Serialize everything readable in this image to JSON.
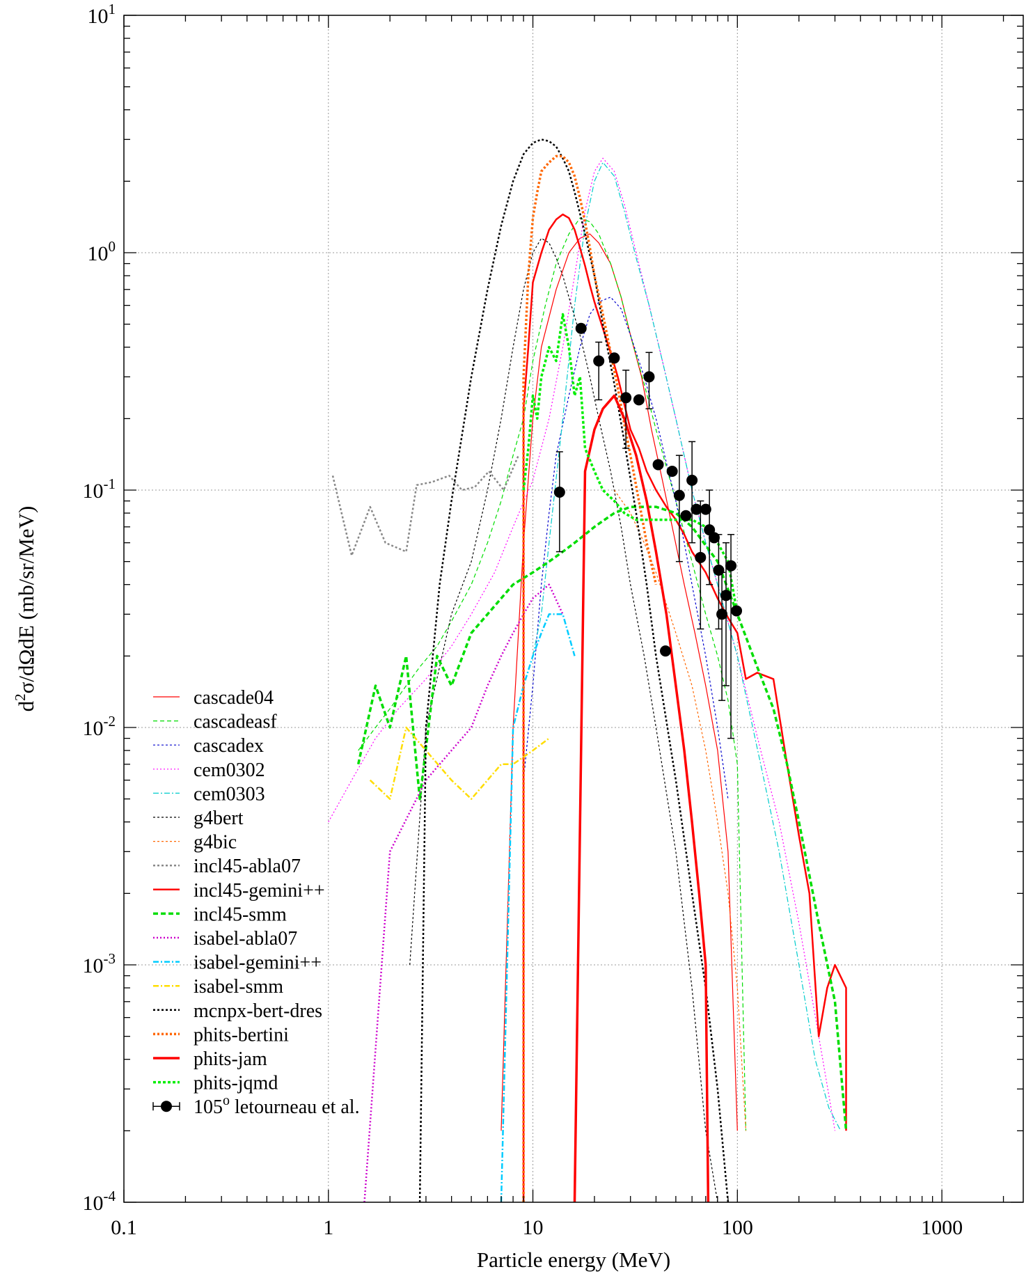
{
  "chart_data": {
    "type": "line",
    "title": "",
    "xlabel": "Particle energy (MeV)",
    "ylabel": {
      "prefix": "d",
      "sup": "2",
      "rest": "σ/dΩdE (mb/sr/MeV)"
    },
    "xscale": "log",
    "yscale": "log",
    "xlim": [
      0.1,
      2500
    ],
    "ylim": [
      0.0001,
      10
    ],
    "grid": true,
    "legend_position": "bottom-left",
    "x_ticks": [
      {
        "value": 0.1,
        "label": "0.1"
      },
      {
        "value": 1,
        "label": "1"
      },
      {
        "value": 10,
        "label": "10"
      },
      {
        "value": 100,
        "label": "100"
      },
      {
        "value": 1000,
        "label": "1000"
      }
    ],
    "y_ticks": [
      {
        "value": 10,
        "base": "10",
        "exp": "1"
      },
      {
        "value": 1,
        "base": "10",
        "exp": "0"
      },
      {
        "value": 0.1,
        "base": "10",
        "exp": "-1"
      },
      {
        "value": 0.01,
        "base": "10",
        "exp": "-2"
      },
      {
        "value": 0.001,
        "base": "10",
        "exp": "-3"
      },
      {
        "value": 0.0001,
        "base": "10",
        "exp": "-4"
      }
    ],
    "series": [
      {
        "name": "cascade04",
        "color": "#ff0000",
        "width": 1.2,
        "dash": "",
        "x": [
          7,
          8,
          9,
          10,
          11,
          13,
          15,
          17,
          19,
          21,
          24,
          27,
          30,
          34,
          38,
          43,
          48,
          55,
          62,
          70,
          80,
          90,
          100
        ],
        "y": [
          0.0002,
          0.01,
          0.06,
          0.2,
          0.4,
          0.7,
          1.0,
          1.15,
          1.2,
          1.1,
          0.9,
          0.65,
          0.45,
          0.3,
          0.18,
          0.11,
          0.07,
          0.04,
          0.025,
          0.015,
          0.008,
          0.003,
          0.0002
        ]
      },
      {
        "name": "cascadeasf",
        "color": "#00dd00",
        "width": 1.2,
        "dash": "6,4",
        "x": [
          1.4,
          1.7,
          2,
          2.4,
          2.8,
          3.4,
          4,
          5,
          6,
          7,
          8,
          9,
          10,
          11.5,
          13,
          15,
          17,
          19,
          21,
          24,
          27,
          30,
          35,
          40,
          50,
          60,
          70,
          80,
          90,
          100,
          110
        ],
        "y": [
          0.008,
          0.01,
          0.012,
          0.015,
          0.018,
          0.022,
          0.028,
          0.04,
          0.06,
          0.09,
          0.14,
          0.2,
          0.35,
          0.6,
          0.9,
          1.2,
          1.4,
          1.35,
          1.2,
          0.9,
          0.65,
          0.45,
          0.28,
          0.18,
          0.09,
          0.05,
          0.03,
          0.02,
          0.013,
          0.007,
          0.0002
        ]
      },
      {
        "name": "cascadex",
        "color": "#0000cc",
        "width": 1.2,
        "dash": "3,3",
        "x": [
          9,
          10,
          11,
          12,
          13,
          15,
          17,
          19,
          21,
          24,
          27,
          30,
          35,
          40,
          45,
          50,
          55,
          60,
          70,
          80,
          90
        ],
        "y": [
          0.006,
          0.015,
          0.04,
          0.08,
          0.14,
          0.25,
          0.4,
          0.55,
          0.62,
          0.65,
          0.58,
          0.45,
          0.3,
          0.2,
          0.13,
          0.09,
          0.06,
          0.04,
          0.02,
          0.01,
          0.005
        ]
      },
      {
        "name": "cem0302",
        "color": "#ff00ff",
        "width": 1.2,
        "dash": "2,3",
        "x": [
          1,
          1.3,
          1.7,
          2.2,
          3,
          4,
          5,
          6.5,
          8,
          10,
          12,
          14,
          16,
          18,
          20,
          22,
          25,
          28,
          32,
          37,
          43,
          50,
          60,
          70,
          80,
          100,
          130,
          160,
          200,
          250,
          300
        ],
        "y": [
          0.004,
          0.006,
          0.009,
          0.012,
          0.016,
          0.022,
          0.03,
          0.045,
          0.07,
          0.11,
          0.2,
          0.4,
          0.8,
          1.5,
          2.2,
          2.5,
          2.2,
          1.6,
          1.0,
          0.6,
          0.35,
          0.2,
          0.1,
          0.06,
          0.04,
          0.02,
          0.008,
          0.004,
          0.0015,
          0.0005,
          0.0002
        ]
      },
      {
        "name": "cem0303",
        "color": "#00cccc",
        "width": 1.2,
        "dash": "8,3,2,3",
        "x": [
          10,
          11,
          12,
          14,
          16,
          18,
          20,
          22,
          25,
          28,
          32,
          37,
          43,
          50,
          60,
          70,
          80,
          100,
          130,
          160,
          200,
          240,
          280,
          320
        ],
        "y": [
          0.02,
          0.03,
          0.06,
          0.2,
          0.6,
          1.3,
          2.0,
          2.4,
          2.1,
          1.5,
          0.95,
          0.6,
          0.35,
          0.2,
          0.1,
          0.06,
          0.04,
          0.02,
          0.007,
          0.003,
          0.001,
          0.0004,
          0.00025,
          0.0002
        ]
      },
      {
        "name": "g4bert",
        "color": "#000000",
        "width": 1.2,
        "dash": "3,3",
        "x": [
          2.5,
          3,
          4,
          5,
          6,
          7,
          8,
          9,
          10,
          11,
          12,
          13,
          14,
          15,
          17,
          19,
          21,
          24,
          27,
          30,
          35,
          40,
          50,
          60,
          70,
          80
        ],
        "y": [
          0.001,
          0.01,
          0.03,
          0.05,
          0.1,
          0.2,
          0.4,
          0.7,
          1.0,
          1.15,
          1.1,
          0.95,
          0.8,
          0.65,
          0.45,
          0.3,
          0.2,
          0.12,
          0.07,
          0.04,
          0.02,
          0.01,
          0.003,
          0.0008,
          0.0002,
          0.0001
        ]
      },
      {
        "name": "g4bic",
        "color": "#ff6600",
        "width": 1.2,
        "dash": "3,3",
        "x": [
          25,
          30,
          35,
          40,
          50,
          60,
          70,
          80,
          90,
          100,
          110
        ],
        "y": [
          0.1,
          0.08,
          0.06,
          0.045,
          0.025,
          0.015,
          0.008,
          0.004,
          0.002,
          0.0008,
          0.0002
        ]
      },
      {
        "name": "incl45-abla07",
        "color": "#888888",
        "width": 2.5,
        "dash": "3,3",
        "x": [
          1.05,
          1.3,
          1.6,
          1.9,
          2.4,
          2.7,
          3.2,
          3.9,
          4.5,
          5.2,
          6.1,
          7.2,
          8.5
        ],
        "y": [
          0.115,
          0.053,
          0.085,
          0.06,
          0.055,
          0.105,
          0.108,
          0.115,
          0.1,
          0.103,
          0.12,
          0.1,
          0.14
        ]
      },
      {
        "name": "incl45-gemini++",
        "color": "#ff0000",
        "width": 2.5,
        "dash": "",
        "x": [
          9,
          9,
          9.5,
          10,
          11,
          12,
          13,
          14,
          15,
          16,
          17,
          18,
          19,
          20,
          22,
          24,
          26,
          28,
          30,
          33,
          36,
          40,
          45,
          50,
          55,
          60,
          70,
          80,
          90,
          100,
          110,
          125,
          150,
          175,
          200,
          225,
          250,
          275,
          300,
          340,
          340
        ],
        "y": [
          0.0001,
          0.22,
          0.4,
          0.75,
          1.0,
          1.25,
          1.38,
          1.45,
          1.4,
          1.25,
          1.05,
          0.88,
          0.73,
          0.62,
          0.48,
          0.38,
          0.3,
          0.23,
          0.18,
          0.15,
          0.12,
          0.1,
          0.085,
          0.075,
          0.065,
          0.055,
          0.045,
          0.035,
          0.029,
          0.025,
          0.016,
          0.017,
          0.016,
          0.007,
          0.0035,
          0.002,
          0.0005,
          0.0008,
          0.001,
          0.0008,
          0.0002
        ]
      },
      {
        "name": "incl45-smm",
        "color": "#00dd00",
        "width": 3.5,
        "dash": "7,4",
        "x": [
          1.4,
          1.7,
          2,
          2.4,
          2.8,
          3.4,
          4,
          5,
          6,
          7,
          8,
          10,
          12,
          14,
          16,
          18,
          20,
          25,
          30,
          40,
          50,
          60,
          80,
          100,
          125,
          150,
          175,
          200,
          250,
          300,
          340
        ],
        "y": [
          0.007,
          0.015,
          0.01,
          0.02,
          0.005,
          0.02,
          0.015,
          0.025,
          0.03,
          0.035,
          0.04,
          0.045,
          0.05,
          0.055,
          0.06,
          0.065,
          0.07,
          0.08,
          0.085,
          0.085,
          0.08,
          0.07,
          0.05,
          0.03,
          0.018,
          0.012,
          0.007,
          0.004,
          0.0015,
          0.0007,
          0.0002
        ]
      },
      {
        "name": "isabel-abla07",
        "color": "#cc00cc",
        "width": 2.5,
        "dash": "2,3",
        "x": [
          1.5,
          2,
          3,
          4,
          5,
          6,
          7,
          8,
          9,
          10,
          12,
          14
        ],
        "y": [
          0.0001,
          0.003,
          0.006,
          0.008,
          0.01,
          0.015,
          0.02,
          0.025,
          0.03,
          0.035,
          0.04,
          0.03
        ]
      },
      {
        "name": "isabel-gemini++",
        "color": "#00ccff",
        "width": 2.5,
        "dash": "8,3,2,3",
        "x": [
          7,
          8,
          9,
          10,
          11,
          12,
          14,
          16
        ],
        "y": [
          0.0001,
          0.01,
          0.015,
          0.02,
          0.025,
          0.03,
          0.03,
          0.02
        ]
      },
      {
        "name": "isabel-smm",
        "color": "#ffdd00",
        "width": 2.5,
        "dash": "8,3,2,3",
        "x": [
          1.6,
          2,
          2.4,
          3,
          4,
          5,
          6,
          7,
          8,
          10,
          12
        ],
        "y": [
          0.006,
          0.005,
          0.01,
          0.008,
          0.006,
          0.005,
          0.006,
          0.007,
          0.007,
          0.008,
          0.009
        ]
      },
      {
        "name": "mcnpx-bert-dres",
        "color": "#000000",
        "width": 2.5,
        "dash": "3,3",
        "x": [
          2.8,
          3,
          3.5,
          4,
          5,
          6,
          7,
          8,
          9,
          10,
          11,
          12,
          13,
          14,
          15,
          16,
          18,
          20,
          22,
          25,
          28,
          32,
          36,
          40,
          50,
          60,
          70,
          80,
          90
        ],
        "y": [
          0.0001,
          0.01,
          0.04,
          0.09,
          0.3,
          0.7,
          1.3,
          2.0,
          2.6,
          2.9,
          3.0,
          2.95,
          2.8,
          2.5,
          2.2,
          1.8,
          1.2,
          0.8,
          0.5,
          0.28,
          0.16,
          0.08,
          0.04,
          0.02,
          0.006,
          0.002,
          0.0008,
          0.0003,
          0.0001
        ]
      },
      {
        "name": "phits-bertini",
        "color": "#ff6600",
        "width": 3.5,
        "dash": "3,3",
        "x": [
          9,
          9,
          9.5,
          10,
          10.5,
          11,
          12,
          13,
          14,
          15,
          16,
          17,
          18,
          19,
          20,
          22,
          24,
          26,
          28,
          30,
          33,
          36,
          40
        ],
        "y": [
          0.0001,
          0.3,
          0.8,
          1.4,
          1.8,
          2.2,
          2.4,
          2.55,
          2.55,
          2.4,
          2.1,
          1.7,
          1.35,
          1.05,
          0.8,
          0.55,
          0.38,
          0.27,
          0.19,
          0.14,
          0.09,
          0.06,
          0.04
        ]
      },
      {
        "name": "phits-jam",
        "color": "#ff0000",
        "width": 3.5,
        "dash": "",
        "x": [
          16,
          18,
          20,
          22,
          25,
          28,
          32,
          36,
          40,
          45,
          50,
          55,
          60,
          65,
          70,
          72
        ],
        "y": [
          0.0001,
          0.12,
          0.18,
          0.22,
          0.25,
          0.2,
          0.14,
          0.09,
          0.055,
          0.03,
          0.015,
          0.008,
          0.004,
          0.002,
          0.001,
          0.0001
        ]
      },
      {
        "name": "phits-jqmd",
        "color": "#00ee00",
        "width": 3.5,
        "dash": "4,3",
        "x": [
          9,
          9.5,
          10,
          10.5,
          11,
          12,
          13,
          14,
          15,
          16,
          17,
          18,
          20,
          22,
          25,
          28,
          32,
          36,
          40,
          50,
          60,
          70,
          80,
          90,
          100
        ],
        "y": [
          0.1,
          0.15,
          0.25,
          0.2,
          0.3,
          0.4,
          0.35,
          0.55,
          0.4,
          0.25,
          0.3,
          0.15,
          0.12,
          0.1,
          0.09,
          0.08,
          0.075,
          0.075,
          0.075,
          0.075,
          0.075,
          0.07,
          0.06,
          0.05,
          0.03
        ]
      }
    ],
    "experimental": {
      "name": "105",
      "sup": "o",
      "suffix": " letourneau et al.",
      "color": "#000000",
      "points": [
        {
          "x": 13.5,
          "y": 0.098,
          "lo": 0.055,
          "hi": 0.145
        },
        {
          "x": 17.2,
          "y": 0.48,
          "lo": 0.48,
          "hi": 0.48
        },
        {
          "x": 21,
          "y": 0.35,
          "lo": 0.24,
          "hi": 0.42
        },
        {
          "x": 25,
          "y": 0.36,
          "lo": 0.36,
          "hi": 0.36
        },
        {
          "x": 28.5,
          "y": 0.245,
          "lo": 0.15,
          "hi": 0.32
        },
        {
          "x": 33,
          "y": 0.24,
          "lo": 0.24,
          "hi": 0.24
        },
        {
          "x": 37,
          "y": 0.3,
          "lo": 0.22,
          "hi": 0.38
        },
        {
          "x": 41,
          "y": 0.128,
          "lo": 0.128,
          "hi": 0.128
        },
        {
          "x": 44.5,
          "y": 0.021,
          "lo": 0.021,
          "hi": 0.021
        },
        {
          "x": 48,
          "y": 0.12,
          "lo": 0.12,
          "hi": 0.12
        },
        {
          "x": 52,
          "y": 0.095,
          "lo": 0.05,
          "hi": 0.14
        },
        {
          "x": 56,
          "y": 0.078,
          "lo": 0.078,
          "hi": 0.078
        },
        {
          "x": 60,
          "y": 0.11,
          "lo": 0.06,
          "hi": 0.16
        },
        {
          "x": 63,
          "y": 0.083,
          "lo": 0.083,
          "hi": 0.083
        },
        {
          "x": 66,
          "y": 0.052,
          "lo": 0.026,
          "hi": 0.09
        },
        {
          "x": 70,
          "y": 0.083,
          "lo": 0.083,
          "hi": 0.083
        },
        {
          "x": 73,
          "y": 0.068,
          "lo": 0.04,
          "hi": 0.1
        },
        {
          "x": 77,
          "y": 0.063,
          "lo": 0.063,
          "hi": 0.063
        },
        {
          "x": 81,
          "y": 0.046,
          "lo": 0.026,
          "hi": 0.065
        },
        {
          "x": 84,
          "y": 0.03,
          "lo": 0.013,
          "hi": 0.045
        },
        {
          "x": 88,
          "y": 0.036,
          "lo": 0.015,
          "hi": 0.06
        },
        {
          "x": 93,
          "y": 0.048,
          "lo": 0.009,
          "hi": 0.065
        },
        {
          "x": 99,
          "y": 0.031,
          "lo": 0.031,
          "hi": 0.031
        }
      ]
    }
  }
}
